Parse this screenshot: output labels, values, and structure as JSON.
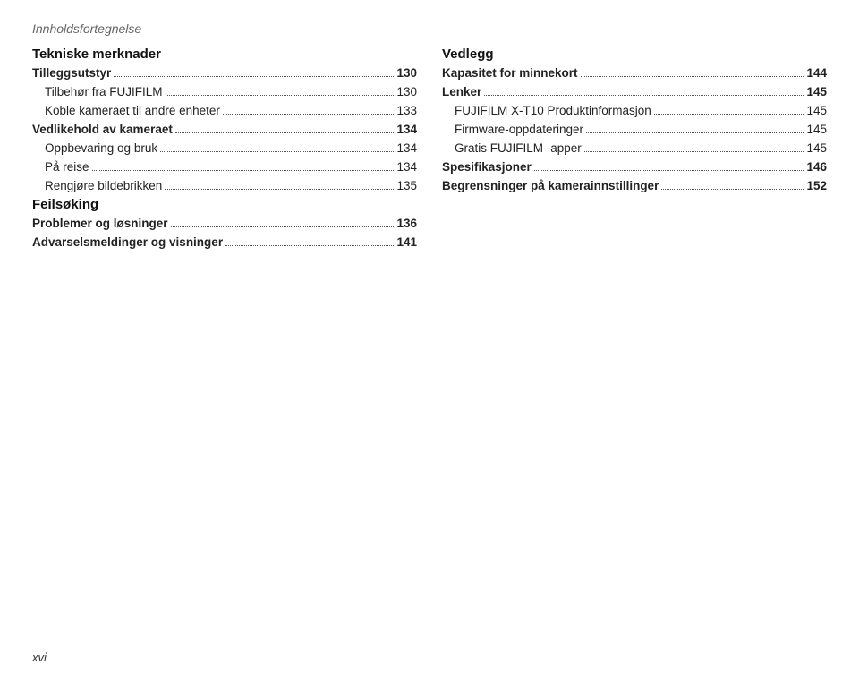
{
  "header": "Innholdsfortegnelse",
  "page_footer": "xvi",
  "left": [
    {
      "type": "section",
      "text": "Tekniske merknader"
    },
    {
      "type": "entry",
      "bold": true,
      "label": "Tilleggsutstyr",
      "page": "130"
    },
    {
      "type": "entry",
      "indent": true,
      "label": "Tilbehør fra FUJIFILM",
      "page": "130"
    },
    {
      "type": "entry",
      "indent": true,
      "label": "Koble kameraet til andre enheter",
      "page": "133"
    },
    {
      "type": "entry",
      "bold": true,
      "label": "Vedlikehold av kameraet",
      "page": "134"
    },
    {
      "type": "entry",
      "indent": true,
      "label": "Oppbevaring og bruk",
      "page": "134"
    },
    {
      "type": "entry",
      "indent": true,
      "label": "På reise",
      "page": "134"
    },
    {
      "type": "entry",
      "indent": true,
      "label": "Rengjøre bildebrikken",
      "page": "135"
    },
    {
      "type": "section",
      "text": "Feilsøking"
    },
    {
      "type": "entry",
      "bold": true,
      "label": "Problemer og løsninger",
      "page": "136"
    },
    {
      "type": "entry",
      "bold": true,
      "label": "Advarselsmeldinger og visninger",
      "page": "141"
    }
  ],
  "right": [
    {
      "type": "section",
      "text": "Vedlegg"
    },
    {
      "type": "entry",
      "bold": true,
      "label": "Kapasitet for minnekort",
      "page": "144"
    },
    {
      "type": "entry",
      "bold": true,
      "label": "Lenker",
      "page": "145"
    },
    {
      "type": "entry",
      "indent": true,
      "label": "FUJIFILM X-T10 Produktinformasjon",
      "page": "145"
    },
    {
      "type": "entry",
      "indent": true,
      "label": "Firmware-oppdateringer",
      "page": "145"
    },
    {
      "type": "entry",
      "indent": true,
      "label": "Gratis FUJIFILM -apper",
      "page": "145"
    },
    {
      "type": "entry",
      "bold": true,
      "label": "Spesifikasjoner",
      "page": "146"
    },
    {
      "type": "entry",
      "bold": true,
      "label": "Begrensninger på kamerainnstillinger",
      "page": "152"
    }
  ]
}
